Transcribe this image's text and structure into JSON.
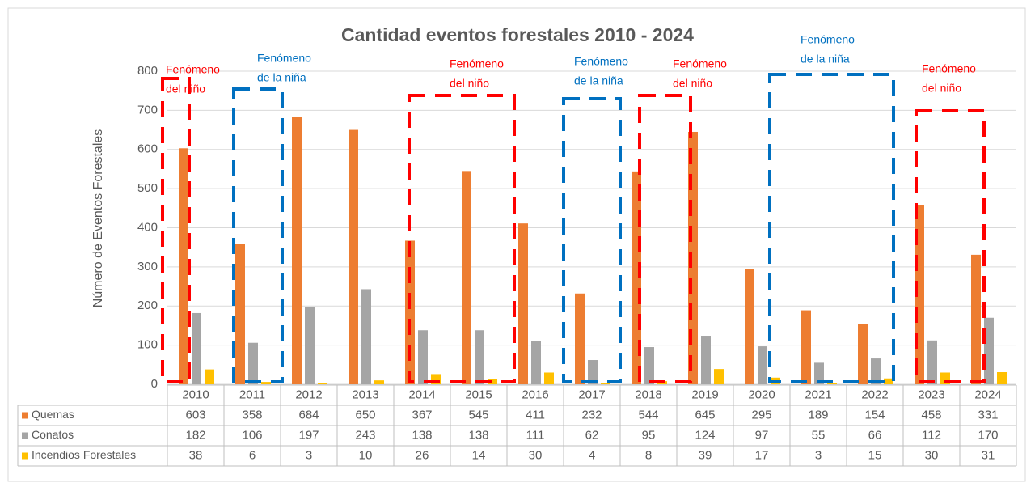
{
  "chart_data": {
    "type": "bar",
    "title": "Cantidad eventos forestales 2010 - 2024",
    "y_label": "Número de Eventos Forestales",
    "categories": [
      "2010",
      "2011",
      "2012",
      "2013",
      "2014",
      "2015",
      "2016",
      "2017",
      "2018",
      "2019",
      "2020",
      "2021",
      "2022",
      "2023",
      "2024"
    ],
    "series": [
      {
        "name": "Quemas",
        "color": "#ed7d31",
        "values": [
          603,
          358,
          684,
          650,
          367,
          545,
          411,
          232,
          544,
          645,
          295,
          189,
          154,
          458,
          331
        ]
      },
      {
        "name": "Conatos",
        "color": "#a5a5a5",
        "values": [
          182,
          106,
          197,
          243,
          138,
          138,
          111,
          62,
          95,
          124,
          97,
          55,
          66,
          112,
          170
        ]
      },
      {
        "name": "Incendios Forestales",
        "color": "#ffc000",
        "values": [
          38,
          6,
          3,
          10,
          26,
          14,
          30,
          4,
          8,
          39,
          17,
          3,
          15,
          30,
          31
        ]
      }
    ],
    "ylim": [
      0,
      800
    ],
    "yticks": [
      0,
      100,
      200,
      300,
      400,
      500,
      600,
      700,
      800
    ],
    "grid": true,
    "annotations": [
      {
        "lines": [
          "Fenómeno",
          "del niño"
        ],
        "color": "#ff0000"
      },
      {
        "lines": [
          "Fenómeno",
          "de la niña"
        ],
        "color": "#0070c0"
      },
      {
        "lines": [
          "Fenómeno",
          "del niño"
        ],
        "color": "#ff0000"
      },
      {
        "lines": [
          "Fenómeno",
          "de la niña"
        ],
        "color": "#0070c0"
      },
      {
        "lines": [
          "Fenómeno",
          "del niño"
        ],
        "color": "#ff0000"
      },
      {
        "lines": [
          "Fenómeno",
          "de la niña"
        ],
        "color": "#0070c0"
      },
      {
        "lines": [
          "Fenómeno",
          "del niño"
        ],
        "color": "#ff0000"
      }
    ]
  }
}
